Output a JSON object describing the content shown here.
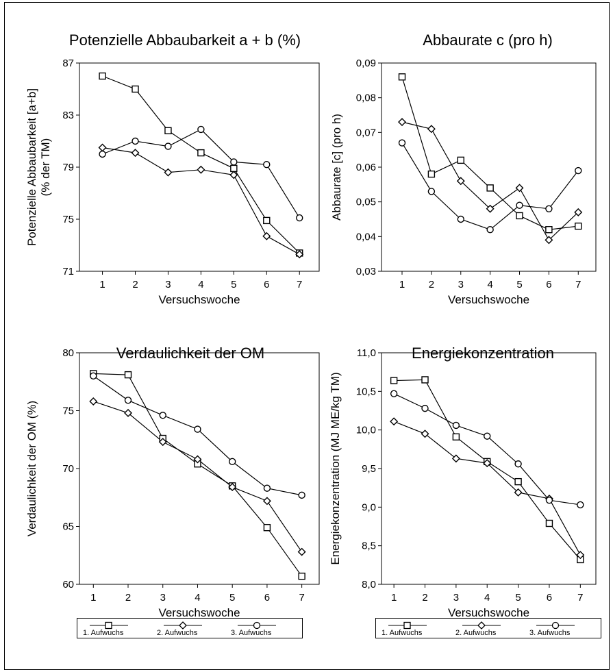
{
  "chart_data": [
    {
      "type": "line",
      "title": "Potenzielle Abbaubarkeit a + b (%)",
      "xlabel": "Versuchswoche",
      "ylabel": "Potenzielle Abbaubarkeit [a+b] (% der TM)",
      "ylabel_lines": [
        "Potenzielle Abbaubarkeit [a+b]",
        "(% der TM)"
      ],
      "x": [
        1,
        2,
        3,
        4,
        5,
        6,
        7
      ],
      "xlim": [
        0.3,
        7.6
      ],
      "ylim": [
        71,
        87
      ],
      "yticks": [
        71,
        75,
        79,
        83,
        87
      ],
      "ytick_labels": [
        "71",
        "75",
        "79",
        "83",
        "87"
      ],
      "series": [
        {
          "name": "1. Aufwuchs",
          "marker": "square",
          "values": [
            86.0,
            85.0,
            81.8,
            80.1,
            78.9,
            74.9,
            72.4
          ]
        },
        {
          "name": "2. Aufwuchs",
          "marker": "diamond",
          "values": [
            80.5,
            80.1,
            78.6,
            78.8,
            78.4,
            73.7,
            72.3
          ]
        },
        {
          "name": "3. Aufwuchs",
          "marker": "circle",
          "values": [
            80.0,
            81.0,
            80.6,
            81.9,
            79.4,
            79.2,
            75.1
          ]
        }
      ]
    },
    {
      "type": "line",
      "title": "Abbaurate c (pro h)",
      "xlabel": "Versuchswoche",
      "ylabel": "Abbaurate [c] (pro h)",
      "ylabel_lines": [
        "Abbaurate [c] (pro h)"
      ],
      "x": [
        1,
        2,
        3,
        4,
        5,
        6,
        7
      ],
      "xlim": [
        0.3,
        7.6
      ],
      "ylim": [
        0.03,
        0.09
      ],
      "yticks": [
        0.03,
        0.04,
        0.05,
        0.06,
        0.07,
        0.08,
        0.09
      ],
      "ytick_labels": [
        "0,03",
        "0,04",
        "0,05",
        "0,06",
        "0,07",
        "0,08",
        "0,09"
      ],
      "series": [
        {
          "name": "1. Aufwuchs",
          "marker": "square",
          "values": [
            0.086,
            0.058,
            0.062,
            0.054,
            0.046,
            0.042,
            0.043
          ]
        },
        {
          "name": "2. Aufwuchs",
          "marker": "diamond",
          "values": [
            0.073,
            0.071,
            0.056,
            0.048,
            0.054,
            0.039,
            0.047
          ]
        },
        {
          "name": "3. Aufwuchs",
          "marker": "circle",
          "values": [
            0.067,
            0.053,
            0.045,
            0.042,
            0.049,
            0.048,
            0.059
          ]
        }
      ]
    },
    {
      "type": "line",
      "title": "Verdaulichkeit der OM",
      "xlabel": "Versuchswoche",
      "ylabel": "Verdaulichkeit der OM (%)",
      "ylabel_lines": [
        "Verdaulichkeit der OM (%)"
      ],
      "x": [
        1,
        2,
        3,
        4,
        5,
        6,
        7
      ],
      "xlim": [
        0.6,
        7.5
      ],
      "ylim": [
        60,
        80
      ],
      "yticks": [
        60,
        65,
        70,
        75,
        80
      ],
      "ytick_labels": [
        "60",
        "65",
        "70",
        "75",
        "80"
      ],
      "series": [
        {
          "name": "1. Aufwuchs",
          "marker": "square",
          "values": [
            78.2,
            78.1,
            72.6,
            70.4,
            68.5,
            64.9,
            60.7
          ]
        },
        {
          "name": "2. Aufwuchs",
          "marker": "diamond",
          "values": [
            75.8,
            74.8,
            72.3,
            70.8,
            68.4,
            67.2,
            62.8
          ]
        },
        {
          "name": "3. Aufwuchs",
          "marker": "circle",
          "values": [
            78.0,
            75.9,
            74.6,
            73.4,
            70.6,
            68.3,
            67.7
          ]
        }
      ]
    },
    {
      "type": "line",
      "title": "Energiekonzentration",
      "xlabel": "Versuchswoche",
      "ylabel": "Energiekonzentration (MJ ME/kg TM)",
      "ylabel_lines": [
        "Energiekonzentration (MJ ME/kg TM)"
      ],
      "x": [
        1,
        2,
        3,
        4,
        5,
        6,
        7
      ],
      "xlim": [
        0.6,
        7.5
      ],
      "ylim": [
        8.0,
        11.0
      ],
      "yticks": [
        8.0,
        8.5,
        9.0,
        9.5,
        10.0,
        10.5,
        11.0
      ],
      "ytick_labels": [
        "8,0",
        "8,5",
        "9,0",
        "9,5",
        "10,0",
        "10,5",
        "11,0"
      ],
      "series": [
        {
          "name": "1. Aufwuchs",
          "marker": "square",
          "values": [
            10.64,
            10.65,
            9.91,
            9.59,
            9.33,
            8.79,
            8.32
          ]
        },
        {
          "name": "2. Aufwuchs",
          "marker": "diamond",
          "values": [
            10.11,
            9.95,
            9.63,
            9.57,
            9.19,
            9.11,
            8.38
          ]
        },
        {
          "name": "3. Aufwuchs",
          "marker": "circle",
          "values": [
            10.47,
            10.28,
            10.06,
            9.92,
            9.56,
            9.09,
            9.03
          ]
        }
      ]
    }
  ],
  "legend": {
    "items": [
      {
        "label": "1. Aufwuchs",
        "marker": "square"
      },
      {
        "label": "2. Aufwuchs",
        "marker": "diamond"
      },
      {
        "label": "3. Aufwuchs",
        "marker": "circle"
      }
    ]
  }
}
